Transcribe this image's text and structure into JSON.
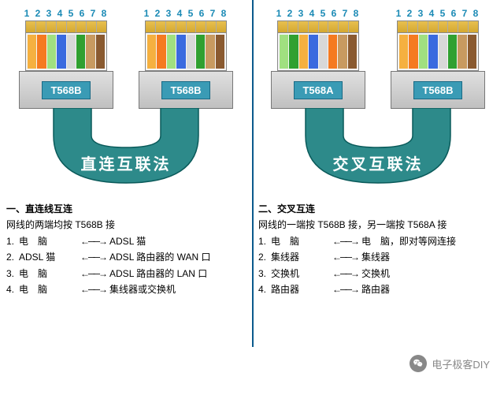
{
  "pin_numbers": "1 2 3 4 5 6 7 8",
  "colors": {
    "T568B": [
      "#f5b040",
      "#f57a20",
      "#a0e080",
      "#3a6adf",
      "#d8d8d8",
      "#30a030",
      "#c89a60",
      "#8a5a30"
    ],
    "T568A": [
      "#a0e080",
      "#30a030",
      "#f5b040",
      "#3a6adf",
      "#d8d8d8",
      "#f57a20",
      "#c89a60",
      "#8a5a30"
    ],
    "cable": "#2d8a8a",
    "cable_stroke": "#0a5a5a"
  },
  "left": {
    "connector_types": [
      "T568B",
      "T568B"
    ],
    "method_label": "直连互联法",
    "title": "一、直连线互连",
    "subtitle": "网线的两端均按 T568B 接",
    "items": [
      {
        "n": "1.",
        "l": "电　脑",
        "r": "ADSL 猫"
      },
      {
        "n": "2.",
        "l": "ADSL 猫",
        "r": "ADSL 路由器的 WAN 口"
      },
      {
        "n": "3.",
        "l": "电　脑",
        "r": "ADSL 路由器的 LAN 口"
      },
      {
        "n": "4.",
        "l": "电　脑",
        "r": "集线器或交换机"
      }
    ]
  },
  "right": {
    "connector_types": [
      "T568A",
      "T568B"
    ],
    "method_label": "交叉互联法",
    "title": "二、交叉互连",
    "subtitle": "网线的一端按 T568B 接，另一端按 T568A 接",
    "items": [
      {
        "n": "1.",
        "l": "电　脑",
        "r": "电　脑，即对等网连接"
      },
      {
        "n": "2.",
        "l": "集线器",
        "r": "集线器"
      },
      {
        "n": "3.",
        "l": "交换机",
        "r": "交换机"
      },
      {
        "n": "4.",
        "l": "路由器",
        "r": "路由器"
      }
    ]
  },
  "watermark": "电子极客DIY"
}
